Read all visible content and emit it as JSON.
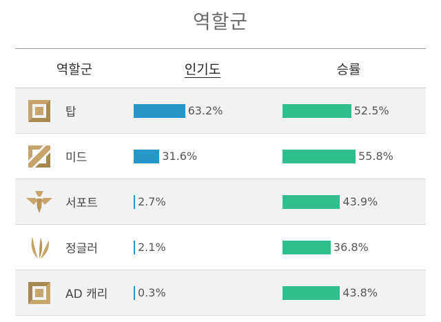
{
  "page_title": "역할군",
  "columns": {
    "role": "역할군",
    "popularity": "인기도",
    "winrate": "승률"
  },
  "colors": {
    "popularity_bar": "#2796c8",
    "winrate_bar": "#2fbe8c",
    "icon_gold": "#c7a56a"
  },
  "rows": [
    {
      "role": "탑",
      "icon": "top-icon",
      "popularity": 63.2,
      "popularity_label": "63.2%",
      "winrate": 52.5,
      "winrate_label": "52.5%"
    },
    {
      "role": "미드",
      "icon": "mid-icon",
      "popularity": 31.6,
      "popularity_label": "31.6%",
      "winrate": 55.8,
      "winrate_label": "55.8%"
    },
    {
      "role": "서포트",
      "icon": "support-icon",
      "popularity": 2.7,
      "popularity_label": "2.7%",
      "winrate": 43.9,
      "winrate_label": "43.9%"
    },
    {
      "role": "정글러",
      "icon": "jungle-icon",
      "popularity": 2.1,
      "popularity_label": "2.1%",
      "winrate": 36.8,
      "winrate_label": "36.8%"
    },
    {
      "role": "AD 캐리",
      "icon": "bottom-icon",
      "popularity": 0.3,
      "popularity_label": "0.3%",
      "winrate": 43.8,
      "winrate_label": "43.8%"
    }
  ]
}
